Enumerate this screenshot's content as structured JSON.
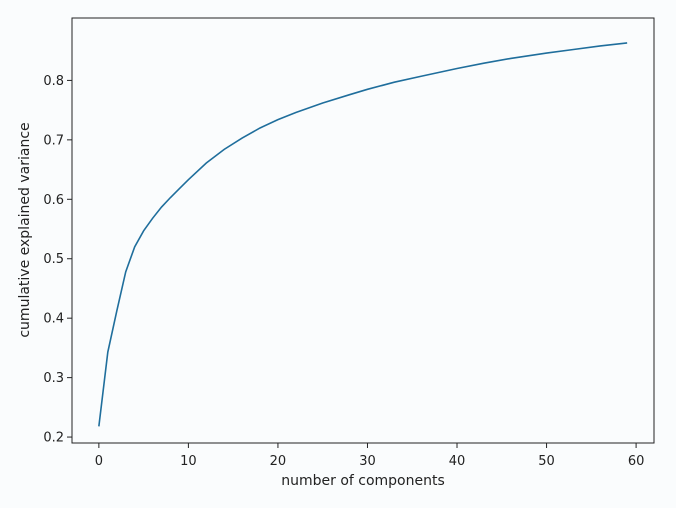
{
  "chart_data": {
    "type": "line",
    "title": "",
    "xlabel": "number of components",
    "ylabel": "cumulative explained variance",
    "xlim": [
      -3,
      62
    ],
    "ylim": [
      0.19,
      0.905
    ],
    "xticks": [
      0,
      10,
      20,
      30,
      40,
      50,
      60
    ],
    "yticks": [
      0.2,
      0.3,
      0.4,
      0.5,
      0.6,
      0.7,
      0.8
    ],
    "xtick_labels": [
      "0",
      "10",
      "20",
      "30",
      "40",
      "50",
      "60"
    ],
    "ytick_labels": [
      "0.2",
      "0.3",
      "0.4",
      "0.5",
      "0.6",
      "0.7",
      "0.8"
    ],
    "grid": false,
    "legend": "none",
    "line_color": "#1f6e9c",
    "series": [
      {
        "x": [
          0,
          1,
          2,
          3,
          4,
          5,
          6,
          7,
          8,
          9,
          10,
          12,
          14,
          16,
          18,
          20,
          22,
          25,
          28,
          30,
          33,
          36,
          40,
          43,
          46,
          50,
          53,
          56,
          59
        ],
        "values": [
          0.218,
          0.343,
          0.412,
          0.478,
          0.52,
          0.547,
          0.568,
          0.587,
          0.603,
          0.618,
          0.633,
          0.661,
          0.684,
          0.703,
          0.72,
          0.734,
          0.746,
          0.762,
          0.776,
          0.785,
          0.797,
          0.807,
          0.82,
          0.829,
          0.837,
          0.846,
          0.852,
          0.858,
          0.863
        ]
      }
    ]
  }
}
